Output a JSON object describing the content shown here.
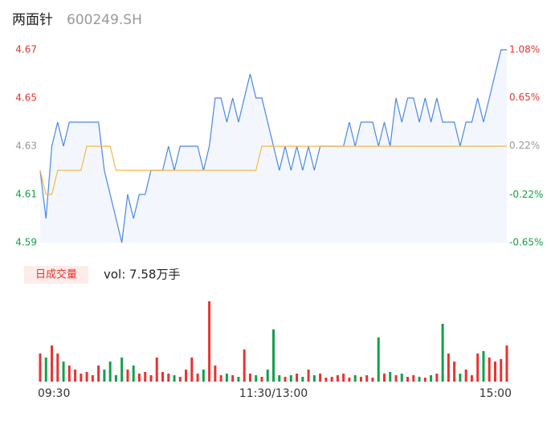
{
  "chart_data": {
    "type": "intraday",
    "title": "两面针",
    "subtitle": "600249.SH",
    "categories": [
      "09:30",
      null,
      null,
      null,
      null,
      null,
      null,
      null,
      null,
      null,
      null,
      null,
      null,
      null,
      null,
      null,
      null,
      null,
      null,
      null,
      null,
      null,
      null,
      null,
      null,
      null,
      null,
      null,
      null,
      null,
      null,
      null,
      null,
      null,
      null,
      null,
      null,
      null,
      null,
      null,
      "11:30/13:00",
      null,
      null,
      null,
      null,
      null,
      null,
      null,
      null,
      null,
      null,
      null,
      null,
      null,
      null,
      null,
      null,
      null,
      null,
      null,
      null,
      null,
      null,
      null,
      null,
      null,
      null,
      null,
      null,
      null,
      null,
      null,
      null,
      null,
      null,
      null,
      null,
      null,
      null,
      null,
      "15:00"
    ],
    "series": [
      {
        "name": "price",
        "color": "#4a86e8",
        "values": [
          4.62,
          4.6,
          4.63,
          4.64,
          4.63,
          4.64,
          4.64,
          4.64,
          4.64,
          4.64,
          4.64,
          4.62,
          4.61,
          4.6,
          4.59,
          4.61,
          4.6,
          4.61,
          4.61,
          4.62,
          4.62,
          4.62,
          4.63,
          4.62,
          4.63,
          4.63,
          4.63,
          4.63,
          4.62,
          4.63,
          4.65,
          4.65,
          4.64,
          4.65,
          4.64,
          4.65,
          4.66,
          4.65,
          4.65,
          4.64,
          4.63,
          4.62,
          4.63,
          4.62,
          4.63,
          4.62,
          4.63,
          4.62,
          4.63,
          4.63,
          4.63,
          4.63,
          4.63,
          4.64,
          4.63,
          4.64,
          4.64,
          4.64,
          4.63,
          4.64,
          4.63,
          4.65,
          4.64,
          4.65,
          4.65,
          4.64,
          4.65,
          4.64,
          4.65,
          4.64,
          4.64,
          4.64,
          4.63,
          4.64,
          4.64,
          4.65,
          4.64,
          4.65,
          4.66,
          4.67,
          4.67
        ]
      },
      {
        "name": "average",
        "color": "#f5b942",
        "values": [
          4.62,
          4.61,
          4.61,
          4.62,
          4.62,
          4.62,
          4.62,
          4.62,
          4.63,
          4.63,
          4.63,
          4.63,
          4.63,
          4.62,
          4.62,
          4.62,
          4.62,
          4.62,
          4.62,
          4.62,
          4.62,
          4.62,
          4.62,
          4.62,
          4.62,
          4.62,
          4.62,
          4.62,
          4.62,
          4.62,
          4.62,
          4.62,
          4.62,
          4.62,
          4.62,
          4.62,
          4.62,
          4.62,
          4.63,
          4.63,
          4.63,
          4.63,
          4.63,
          4.63,
          4.63,
          4.63,
          4.63,
          4.63,
          4.63,
          4.63,
          4.63,
          4.63,
          4.63,
          4.63,
          4.63,
          4.63,
          4.63,
          4.63,
          4.63,
          4.63,
          4.63,
          4.63,
          4.63,
          4.63,
          4.63,
          4.63,
          4.63,
          4.63,
          4.63,
          4.63,
          4.63,
          4.63,
          4.63,
          4.63,
          4.63,
          4.63,
          4.63,
          4.63,
          4.63,
          4.63,
          4.63
        ]
      }
    ],
    "ylim": [
      4.59,
      4.67
    ],
    "yticks": [
      4.67,
      4.65,
      4.63,
      4.61,
      4.59
    ],
    "ytick_colors": [
      "#e8332f",
      "#e8332f",
      "#999999",
      "#12a04a",
      "#12a04a"
    ],
    "y2lim": [
      -0.65,
      1.08
    ],
    "y2ticks": [
      {
        "value": 1.08,
        "label": "1.08%"
      },
      {
        "value": 0.65,
        "label": "0.65%"
      },
      {
        "value": 0.22,
        "label": "0.22%"
      },
      {
        "value": -0.22,
        "label": "-0.22%"
      },
      {
        "value": -0.65,
        "label": "-0.65%"
      }
    ],
    "y2tick_colors": [
      "#e8332f",
      "#e8332f",
      "#999999",
      "#12a04a",
      "#12a04a"
    ],
    "volume_label": "日成交量",
    "volume_total": "vol: 7.58万手",
    "volume": [
      350,
      300,
      450,
      350,
      250,
      200,
      150,
      100,
      120,
      80,
      200,
      150,
      250,
      80,
      300,
      150,
      200,
      100,
      120,
      80,
      300,
      120,
      100,
      80,
      60,
      150,
      300,
      100,
      150,
      1000,
      200,
      80,
      100,
      80,
      60,
      400,
      100,
      80,
      60,
      150,
      650,
      80,
      60,
      80,
      100,
      60,
      150,
      80,
      100,
      50,
      60,
      80,
      100,
      50,
      80,
      60,
      80,
      50,
      550,
      100,
      120,
      80,
      100,
      60,
      80,
      60,
      50,
      80,
      100,
      720,
      350,
      250,
      100,
      150,
      80,
      350,
      380,
      300,
      250,
      280,
      450
    ],
    "volume_ylim": [
      0,
      1000
    ],
    "up_color": "#e8332f",
    "down_color": "#12a04a",
    "area_color": "#f3f7fd"
  }
}
